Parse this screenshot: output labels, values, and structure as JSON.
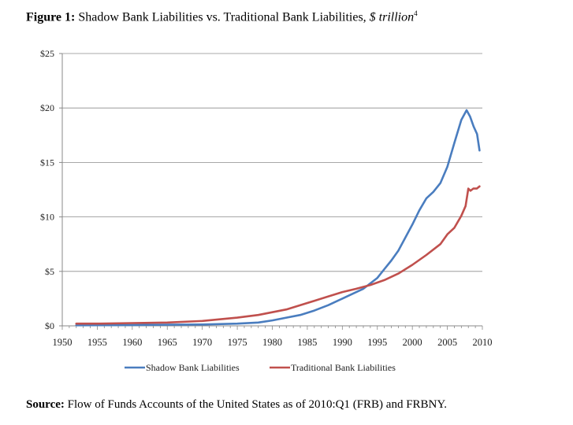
{
  "figure": {
    "label": "Figure 1:",
    "title": "Shadow Bank Liabilities vs. Traditional Bank Liabilities,",
    "unit": "$ trillion",
    "footnote_mark": "4"
  },
  "source": {
    "label": "Source:",
    "text": "Flow of Funds Accounts of the United States as of 2010:Q1 (FRB) and FRBNY."
  },
  "chart_data": {
    "type": "line",
    "title": "",
    "xlabel": "",
    "ylabel": "",
    "xlim": [
      1950,
      2010
    ],
    "ylim": [
      0,
      25
    ],
    "grid": "horizontal",
    "legend_position": "bottom",
    "x_ticks": [
      1950,
      1955,
      1960,
      1965,
      1970,
      1975,
      1980,
      1985,
      1990,
      1995,
      2000,
      2005,
      2010
    ],
    "x_tick_labels": [
      "1950",
      "1955",
      "1960",
      "1965",
      "1970",
      "1975",
      "1980",
      "1985",
      "1990",
      "1995",
      "2000",
      "2005",
      "2010"
    ],
    "y_ticks": [
      0,
      5,
      10,
      15,
      20,
      25
    ],
    "y_tick_labels": [
      "$0",
      "$5",
      "$10",
      "$15",
      "$20",
      "$25"
    ],
    "series": [
      {
        "name": "Shadow Bank Liabilities",
        "color": "#4a7dbf",
        "points": [
          [
            1952,
            0.05
          ],
          [
            1955,
            0.06
          ],
          [
            1960,
            0.08
          ],
          [
            1965,
            0.1
          ],
          [
            1970,
            0.12
          ],
          [
            1975,
            0.2
          ],
          [
            1978,
            0.3
          ],
          [
            1980,
            0.5
          ],
          [
            1982,
            0.75
          ],
          [
            1984,
            1.0
          ],
          [
            1986,
            1.4
          ],
          [
            1988,
            1.9
          ],
          [
            1990,
            2.5
          ],
          [
            1992,
            3.1
          ],
          [
            1993,
            3.4
          ],
          [
            1994,
            3.9
          ],
          [
            1995,
            4.4
          ],
          [
            1996,
            5.2
          ],
          [
            1997,
            6.0
          ],
          [
            1998,
            6.9
          ],
          [
            1999,
            8.1
          ],
          [
            2000,
            9.3
          ],
          [
            2001,
            10.6
          ],
          [
            2002,
            11.7
          ],
          [
            2003,
            12.3
          ],
          [
            2004,
            13.1
          ],
          [
            2005,
            14.6
          ],
          [
            2006,
            16.8
          ],
          [
            2007,
            18.9
          ],
          [
            2007.75,
            19.8
          ],
          [
            2008.25,
            19.2
          ],
          [
            2008.75,
            18.3
          ],
          [
            2009.25,
            17.6
          ],
          [
            2009.6,
            16.1
          ]
        ]
      },
      {
        "name": "Traditional Bank Liabilities",
        "color": "#c0504d",
        "points": [
          [
            1952,
            0.2
          ],
          [
            1955,
            0.2
          ],
          [
            1960,
            0.25
          ],
          [
            1965,
            0.3
          ],
          [
            1970,
            0.45
          ],
          [
            1975,
            0.75
          ],
          [
            1978,
            1.0
          ],
          [
            1980,
            1.25
          ],
          [
            1982,
            1.5
          ],
          [
            1984,
            1.9
          ],
          [
            1986,
            2.3
          ],
          [
            1988,
            2.7
          ],
          [
            1990,
            3.1
          ],
          [
            1992,
            3.4
          ],
          [
            1994,
            3.75
          ],
          [
            1996,
            4.2
          ],
          [
            1998,
            4.8
          ],
          [
            2000,
            5.6
          ],
          [
            2002,
            6.5
          ],
          [
            2004,
            7.5
          ],
          [
            2005,
            8.4
          ],
          [
            2006,
            9.0
          ],
          [
            2007,
            10.1
          ],
          [
            2007.6,
            11.0
          ],
          [
            2008,
            12.6
          ],
          [
            2008.3,
            12.4
          ],
          [
            2008.7,
            12.6
          ],
          [
            2009.2,
            12.6
          ],
          [
            2009.6,
            12.8
          ]
        ]
      }
    ]
  }
}
